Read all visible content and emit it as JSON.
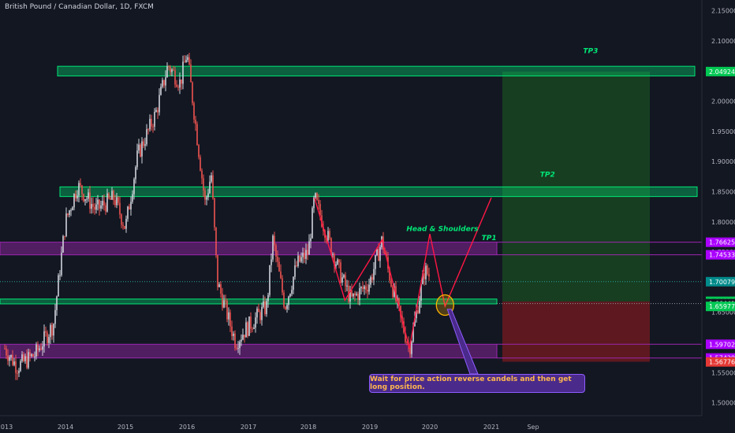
{
  "symbol_title": "British Pound / Canadian Dollar, 1D, FXCM",
  "colors": {
    "background": "#131722",
    "up": "#d1d4dc",
    "down": "#ef5350",
    "green_zone": "#00e676",
    "purple_zone": "#9c27b0",
    "target_zone": "#1b5e20",
    "stop_zone": "#b71c1c",
    "pattern_line": "#ff1744",
    "label_green": "#00e676"
  },
  "chart_data": {
    "type": "candlestick",
    "title": "British Pound / Canadian Dollar, 1D, FXCM",
    "x_ticks": [
      "2013",
      "2014",
      "2015",
      "2016",
      "2017",
      "2018",
      "2019",
      "2020",
      "2021",
      "Sep"
    ],
    "y_ticks": [
      2.15,
      2.1,
      2.05,
      2.0,
      1.95,
      1.9,
      1.85,
      1.8,
      1.75,
      1.7,
      1.65,
      1.6,
      1.55,
      1.5
    ],
    "ylim": [
      1.48,
      2.165
    ],
    "price_labels": [
      {
        "value": 2.04924,
        "text": "2.04924",
        "bg": "#00c853"
      },
      {
        "value": 1.76625,
        "text": "1.76625",
        "bg": "#aa00ff"
      },
      {
        "value": 1.74533,
        "text": "1.74533",
        "bg": "#aa00ff"
      },
      {
        "value": 1.70079,
        "text": "1.70079",
        "bg": "#008b8b"
      },
      {
        "value": 1.66832,
        "text": "1.66832",
        "bg": "#00c853"
      },
      {
        "value": 1.66441,
        "text": "1.66441",
        "bg": "#131722"
      },
      {
        "value": 1.65977,
        "text": "1.65977",
        "bg": "#00c853"
      },
      {
        "value": 1.59702,
        "text": "1.59702",
        "bg": "#aa00ff"
      },
      {
        "value": 1.57429,
        "text": "1.57429",
        "bg": "#aa00ff"
      },
      {
        "value": 1.56776,
        "text": "1.56776",
        "bg": "#e53935"
      }
    ],
    "price_path": [
      [
        "2013.0",
        1.59
      ],
      [
        "2013.2",
        1.56
      ],
      [
        "2013.5",
        1.58
      ],
      [
        "2013.8",
        1.63
      ],
      [
        "2014.0",
        1.8
      ],
      [
        "2014.2",
        1.86
      ],
      [
        "2014.5",
        1.82
      ],
      [
        "2014.8",
        1.84
      ],
      [
        "2015.0",
        1.79
      ],
      [
        "2015.2",
        1.91
      ],
      [
        "2015.5",
        1.98
      ],
      [
        "2015.7",
        2.06
      ],
      [
        "2015.9",
        2.03
      ],
      [
        "2016.0",
        2.08
      ],
      [
        "2016.3",
        1.83
      ],
      [
        "2016.4",
        1.88
      ],
      [
        "2016.5",
        1.7
      ],
      [
        "2016.8",
        1.6
      ],
      [
        "2016.95",
        1.62
      ],
      [
        "2017.3",
        1.66
      ],
      [
        "2017.4",
        1.77
      ],
      [
        "2017.6",
        1.66
      ],
      [
        "2017.8",
        1.73
      ],
      [
        "2018.0",
        1.75
      ],
      [
        "2018.1",
        1.84
      ],
      [
        "2018.5",
        1.72
      ],
      [
        "2018.7",
        1.67
      ],
      [
        "2019.0",
        1.7
      ],
      [
        "2019.2",
        1.77
      ],
      [
        "2019.3",
        1.72
      ],
      [
        "2019.5",
        1.64
      ],
      [
        "2019.65",
        1.59
      ],
      [
        "2019.9",
        1.72
      ],
      [
        "2020.0",
        1.71
      ]
    ],
    "zones": [
      {
        "kind": "green",
        "from": 2.042,
        "to": 2.058,
        "x_start": "2013.9",
        "x_end": "2021.3"
      },
      {
        "kind": "green",
        "from": 1.842,
        "to": 1.858,
        "x_start": "2013.9",
        "x_end": "2021.3"
      },
      {
        "kind": "purple",
        "from": 1.7453,
        "to": 1.7663,
        "x_start": "2013.0",
        "x_end": "2020.85"
      },
      {
        "kind": "green",
        "from": 1.664,
        "to": 1.672,
        "x_start": "2013.0",
        "x_end": "2020.85"
      },
      {
        "kind": "purple",
        "from": 1.5743,
        "to": 1.597,
        "x_start": "2013.0",
        "x_end": "2020.85"
      }
    ],
    "position": {
      "entry": 1.668,
      "target": 2.049,
      "stop": 1.568,
      "x_start": "2021.0",
      "x_end": "2023.5"
    },
    "pattern": [
      [
        "2018.1",
        1.84
      ],
      [
        "2018.6",
        1.67
      ],
      [
        "2019.2",
        1.77
      ],
      [
        "2019.65",
        1.59
      ],
      [
        "2020.0",
        1.78
      ],
      [
        "2020.25",
        1.66
      ],
      [
        "2021.0",
        1.84
      ]
    ],
    "labels": [
      {
        "text": "TP3",
        "x": "2022.5",
        "y": 2.08
      },
      {
        "text": "TP2",
        "x": "2021.8",
        "y": 1.875
      },
      {
        "text": "TP1",
        "x": "2020.85",
        "y": 1.77
      },
      {
        "text": "Head & Shoulders",
        "x": "2019.6",
        "y": 1.785
      }
    ],
    "annotation": "Wait for price action reverse candels and then get long position.",
    "current_price": 1.70079,
    "legend": "none",
    "grid": false
  }
}
